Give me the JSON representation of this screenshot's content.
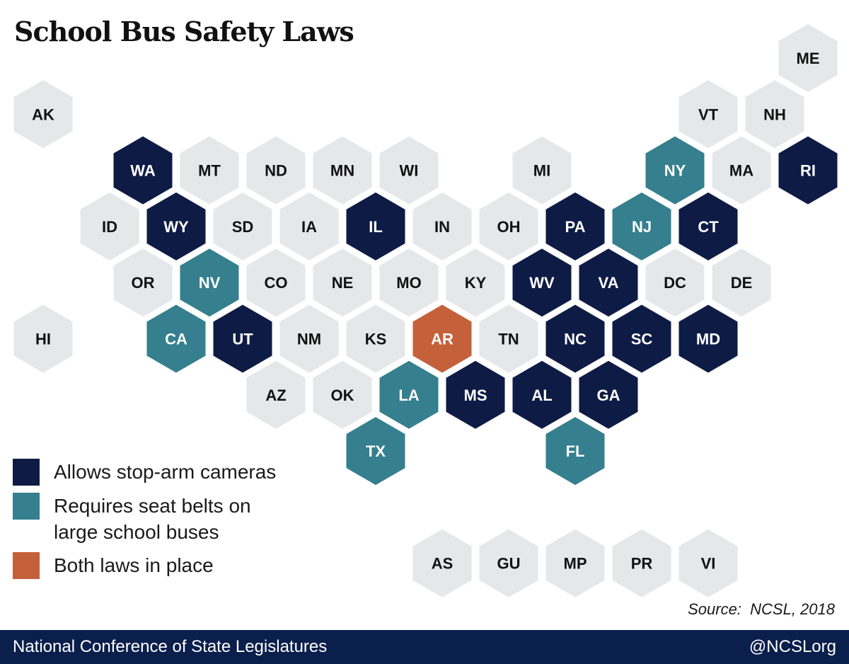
{
  "title": "School Bus Safety Laws",
  "colors": {
    "none": "#e6e7e8",
    "stop_arm": "#0e1b45",
    "seat_belts": "#357f8e",
    "both": "#c4603a",
    "label_dark": "#111111",
    "label_light": "#ffffff"
  },
  "legend": [
    {
      "key": "stop_arm",
      "label": "Allows stop-arm cameras"
    },
    {
      "key": "seat_belts",
      "label": "Requires seat belts on\nlarge school buses"
    },
    {
      "key": "both",
      "label": "Both laws in place"
    }
  ],
  "chart_data": {
    "type": "hex tile map",
    "categories": {
      "stop_arm": [
        "WA",
        "RI",
        "WY",
        "IL",
        "PA",
        "CT",
        "WV",
        "VA",
        "UT",
        "NC",
        "SC",
        "MD",
        "MS",
        "AL",
        "GA"
      ],
      "seat_belts": [
        "NY",
        "NJ",
        "NV",
        "CA",
        "LA",
        "TX",
        "FL"
      ],
      "both": [
        "AR"
      ]
    },
    "states": [
      {
        "abbr": "ME",
        "row": 0,
        "col": 11
      },
      {
        "abbr": "AK",
        "row": 1,
        "col": 0
      },
      {
        "abbr": "VT",
        "row": 1,
        "col": 10
      },
      {
        "abbr": "NH",
        "row": 1,
        "col": 11
      },
      {
        "abbr": "WA",
        "row": 2,
        "col": 1
      },
      {
        "abbr": "MT",
        "row": 2,
        "col": 2
      },
      {
        "abbr": "ND",
        "row": 2,
        "col": 3
      },
      {
        "abbr": "MN",
        "row": 2,
        "col": 4
      },
      {
        "abbr": "WI",
        "row": 2,
        "col": 5
      },
      {
        "abbr": "MI",
        "row": 2,
        "col": 7
      },
      {
        "abbr": "NY",
        "row": 2,
        "col": 9
      },
      {
        "abbr": "MA",
        "row": 2,
        "col": 10
      },
      {
        "abbr": "RI",
        "row": 2,
        "col": 11
      },
      {
        "abbr": "ID",
        "row": 3,
        "col": 1
      },
      {
        "abbr": "WY",
        "row": 3,
        "col": 2
      },
      {
        "abbr": "SD",
        "row": 3,
        "col": 3
      },
      {
        "abbr": "IA",
        "row": 3,
        "col": 4
      },
      {
        "abbr": "IL",
        "row": 3,
        "col": 5
      },
      {
        "abbr": "IN",
        "row": 3,
        "col": 6
      },
      {
        "abbr": "OH",
        "row": 3,
        "col": 7
      },
      {
        "abbr": "PA",
        "row": 3,
        "col": 8
      },
      {
        "abbr": "NJ",
        "row": 3,
        "col": 9
      },
      {
        "abbr": "CT",
        "row": 3,
        "col": 10
      },
      {
        "abbr": "OR",
        "row": 4,
        "col": 1
      },
      {
        "abbr": "NV",
        "row": 4,
        "col": 2
      },
      {
        "abbr": "CO",
        "row": 4,
        "col": 3
      },
      {
        "abbr": "NE",
        "row": 4,
        "col": 4
      },
      {
        "abbr": "MO",
        "row": 4,
        "col": 5
      },
      {
        "abbr": "KY",
        "row": 4,
        "col": 6
      },
      {
        "abbr": "WV",
        "row": 4,
        "col": 7
      },
      {
        "abbr": "VA",
        "row": 4,
        "col": 8
      },
      {
        "abbr": "DC",
        "row": 4,
        "col": 9
      },
      {
        "abbr": "DE",
        "row": 4,
        "col": 10
      },
      {
        "abbr": "HI",
        "row": 5,
        "col": 0
      },
      {
        "abbr": "CA",
        "row": 5,
        "col": 2
      },
      {
        "abbr": "UT",
        "row": 5,
        "col": 3
      },
      {
        "abbr": "NM",
        "row": 5,
        "col": 4
      },
      {
        "abbr": "KS",
        "row": 5,
        "col": 5
      },
      {
        "abbr": "AR",
        "row": 5,
        "col": 6
      },
      {
        "abbr": "TN",
        "row": 5,
        "col": 7
      },
      {
        "abbr": "NC",
        "row": 5,
        "col": 8
      },
      {
        "abbr": "SC",
        "row": 5,
        "col": 9
      },
      {
        "abbr": "MD",
        "row": 5,
        "col": 10
      },
      {
        "abbr": "AZ",
        "row": 6,
        "col": 3
      },
      {
        "abbr": "OK",
        "row": 6,
        "col": 4
      },
      {
        "abbr": "LA",
        "row": 6,
        "col": 5
      },
      {
        "abbr": "MS",
        "row": 6,
        "col": 6
      },
      {
        "abbr": "AL",
        "row": 6,
        "col": 7
      },
      {
        "abbr": "GA",
        "row": 6,
        "col": 8
      },
      {
        "abbr": "TX",
        "row": 7,
        "col": 5
      },
      {
        "abbr": "FL",
        "row": 7,
        "col": 8
      },
      {
        "abbr": "AS",
        "row": 9,
        "col": 6
      },
      {
        "abbr": "GU",
        "row": 9,
        "col": 7
      },
      {
        "abbr": "MP",
        "row": 9,
        "col": 8
      },
      {
        "abbr": "PR",
        "row": 9,
        "col": 9
      },
      {
        "abbr": "VI",
        "row": 9,
        "col": 10
      }
    ]
  },
  "source": "Source:  NCSL, 2018",
  "footer": {
    "org": "National Conference of State Legislatures",
    "handle": "@NCSLorg"
  }
}
